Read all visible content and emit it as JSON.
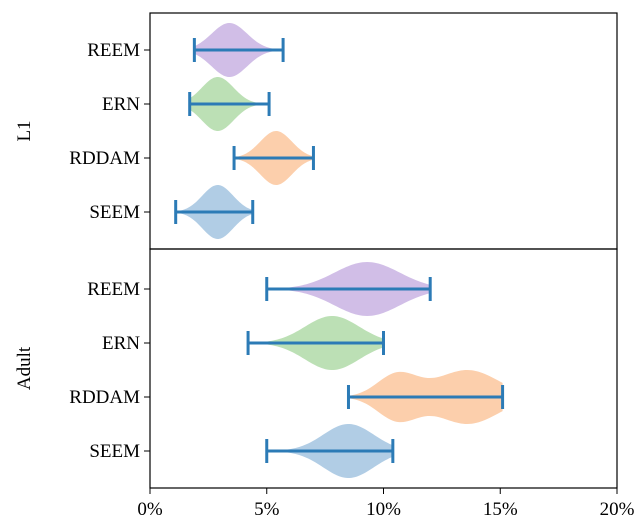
{
  "chart_data": {
    "type": "violin",
    "orientation": "horizontal",
    "x_axis": {
      "min": 0,
      "max": 20,
      "ticks": [
        0,
        5,
        10,
        15,
        20
      ],
      "tick_labels": [
        "0%",
        "5%",
        "10%",
        "15%",
        "20%"
      ]
    },
    "categories": [
      "REEM",
      "ERN",
      "RDDAM",
      "SEEM"
    ],
    "category_colors": {
      "REEM": "#c9b3e3",
      "ERN": "#b0dba8",
      "RDDAM": "#fcc79d",
      "SEEM": "#a3c4e0"
    },
    "range_line_color": "#2c7bb6",
    "panels": [
      {
        "label": "L1",
        "violins": [
          {
            "category": "REEM",
            "min": 1.9,
            "max": 5.7,
            "peak": 3.4,
            "max_half_height": 0.5
          },
          {
            "category": "ERN",
            "min": 1.7,
            "max": 5.1,
            "peak": 2.9,
            "max_half_height": 0.5
          },
          {
            "category": "RDDAM",
            "min": 3.6,
            "max": 7.0,
            "peak": 5.4,
            "max_half_height": 0.5
          },
          {
            "category": "SEEM",
            "min": 1.1,
            "max": 4.4,
            "peak": 2.9,
            "max_half_height": 0.5
          }
        ]
      },
      {
        "label": "Adult",
        "violins": [
          {
            "category": "REEM",
            "min": 5.0,
            "max": 12.0,
            "peak": 9.3,
            "max_half_height": 0.5
          },
          {
            "category": "ERN",
            "min": 4.2,
            "max": 10.0,
            "peak": 7.8,
            "max_half_height": 0.5
          },
          {
            "category": "RDDAM",
            "min": 8.5,
            "max": 15.1,
            "peak": 13.6,
            "secondary_peak": 10.6,
            "max_half_height": 0.5
          },
          {
            "category": "SEEM",
            "min": 5.0,
            "max": 10.4,
            "peak": 8.5,
            "max_half_height": 0.5
          }
        ]
      }
    ]
  }
}
